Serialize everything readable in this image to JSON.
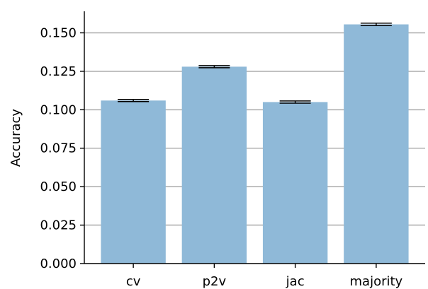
{
  "chart_data": {
    "type": "bar",
    "categories": [
      "cv",
      "p2v",
      "jac",
      "majority"
    ],
    "values": [
      0.106,
      0.128,
      0.105,
      0.1555
    ],
    "error": [
      0.0007,
      0.0007,
      0.0007,
      0.0008
    ],
    "title": "",
    "xlabel": "",
    "ylabel": "Accuracy",
    "ylim": [
      0,
      0.164
    ],
    "yticks": [
      0.0,
      0.025,
      0.05,
      0.075,
      0.1,
      0.125,
      0.15
    ],
    "ytick_labels": [
      "0.000",
      "0.025",
      "0.050",
      "0.075",
      "0.100",
      "0.125",
      "0.150"
    ],
    "grid": "horizontal",
    "spines": "left-bottom",
    "bar_color": "#8fb9d8",
    "grid_color": "#b0b0b0",
    "error_color": "#000000"
  }
}
